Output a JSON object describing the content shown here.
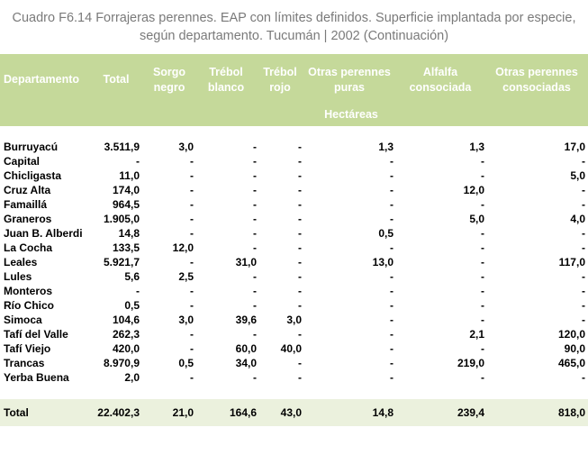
{
  "title": {
    "line1": "Cuadro F6.14 Forrajeras perennes. EAP con límites definidos. Superficie implantada por especie,",
    "line2": "según departamento.  Tucumán | 2002 (Continuación)"
  },
  "header": {
    "departamento": "Departamento",
    "total": "Total",
    "sorgo_1": "Sorgo",
    "sorgo_2": "negro",
    "trebol_blanco_1": "Trébol",
    "trebol_blanco_2": "blanco",
    "trebol_rojo_1": "Trébol",
    "trebol_rojo_2": "rojo",
    "otras_puras_1": "Otras perennes",
    "otras_puras_2": "puras",
    "alfalfa_1": "Alfalfa",
    "alfalfa_2": "consociada",
    "otras_cons_1": "Otras perennes",
    "otras_cons_2": "consociadas",
    "unit": "Hectáreas"
  },
  "rows": [
    [
      "Burruyacú",
      "3.511,9",
      "3,0",
      "-",
      "-",
      "1,3",
      "1,3",
      "17,0"
    ],
    [
      "Capital",
      "-",
      "-",
      "-",
      "-",
      "-",
      "-",
      "-"
    ],
    [
      "Chicligasta",
      "11,0",
      "-",
      "-",
      "-",
      "-",
      "-",
      "5,0"
    ],
    [
      "Cruz Alta",
      "174,0",
      "-",
      "-",
      "-",
      "-",
      "12,0",
      "-"
    ],
    [
      "Famaillá",
      "964,5",
      "-",
      "-",
      "-",
      "-",
      "-",
      "-"
    ],
    [
      "Graneros",
      "1.905,0",
      "-",
      "-",
      "-",
      "-",
      "5,0",
      "4,0"
    ],
    [
      "Juan B. Alberdi",
      "14,8",
      "-",
      "-",
      "-",
      "0,5",
      "-",
      "-"
    ],
    [
      "La Cocha",
      "133,5",
      "12,0",
      "-",
      "-",
      "-",
      "-",
      "-"
    ],
    [
      "Leales",
      "5.921,7",
      "-",
      "31,0",
      "-",
      "13,0",
      "-",
      "117,0"
    ],
    [
      "Lules",
      "5,6",
      "2,5",
      "-",
      "-",
      "-",
      "-",
      "-"
    ],
    [
      "Monteros",
      "-",
      "-",
      "-",
      "-",
      "-",
      "-",
      "-"
    ],
    [
      "Río Chico",
      "0,5",
      "-",
      "-",
      "-",
      "-",
      "-",
      "-"
    ],
    [
      "Simoca",
      "104,6",
      "3,0",
      "39,6",
      "3,0",
      "-",
      "-",
      "-"
    ],
    [
      "Tafí del Valle",
      "262,3",
      "-",
      "-",
      "-",
      "-",
      "2,1",
      "120,0"
    ],
    [
      "Tafí Viejo",
      "420,0",
      "-",
      "60,0",
      "40,0",
      "-",
      "-",
      "90,0"
    ],
    [
      "Trancas",
      "8.970,9",
      "0,5",
      "34,0",
      "-",
      "-",
      "219,0",
      "465,0"
    ],
    [
      "Yerba Buena",
      "2,0",
      "-",
      "-",
      "-",
      "-",
      "-",
      "-"
    ]
  ],
  "total": [
    "Total",
    "22.402,3",
    "21,0",
    "164,6",
    "43,0",
    "14,8",
    "239,4",
    "818,0"
  ]
}
